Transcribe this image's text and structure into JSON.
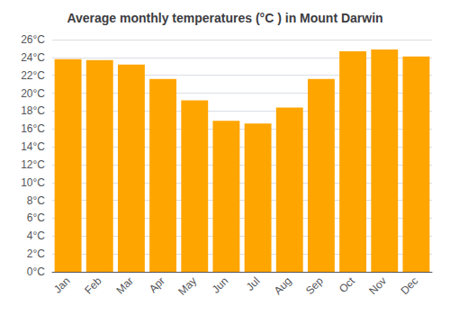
{
  "chart_data": {
    "type": "bar",
    "title": "Average monthly temperatures (°C ) in Mount Darwin",
    "categories": [
      "Jan",
      "Feb",
      "Mar",
      "Apr",
      "May",
      "Jun",
      "Jul",
      "Aug",
      "Sep",
      "Oct",
      "Nov",
      "Dec"
    ],
    "values": [
      23.8,
      23.7,
      23.2,
      21.6,
      19.2,
      16.9,
      16.6,
      18.4,
      21.6,
      24.7,
      24.9,
      24.1
    ],
    "color": "#FFA500",
    "ylim": [
      0,
      26
    ],
    "yticks": [
      {
        "value": 0,
        "label": "0°C"
      },
      {
        "value": 2,
        "label": "2°C"
      },
      {
        "value": 4,
        "label": "4°C"
      },
      {
        "value": 6,
        "label": "6°C"
      },
      {
        "value": 8,
        "label": "8°C"
      },
      {
        "value": 10,
        "label": "10°C"
      },
      {
        "value": 12,
        "label": "12°C"
      },
      {
        "value": 14,
        "label": "14°C"
      },
      {
        "value": 16,
        "label": "16°C"
      },
      {
        "value": 18,
        "label": "18°C"
      },
      {
        "value": 20,
        "label": "20°C"
      },
      {
        "value": 22,
        "label": "22°C"
      },
      {
        "value": 24,
        "label": "24°C"
      },
      {
        "value": 26,
        "label": "26°C"
      }
    ],
    "grid": true
  }
}
